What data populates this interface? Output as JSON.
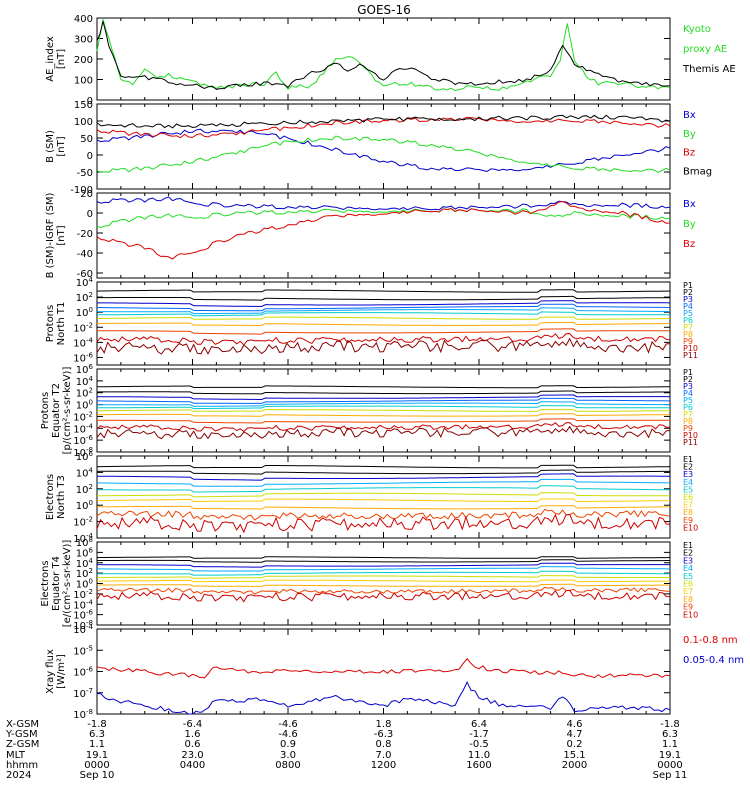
{
  "title": "GOES-16",
  "colors": {
    "black": "#000000",
    "green": "#22dd22",
    "blue": "#0000cc",
    "red": "#dd0000",
    "darkred": "#aa0000"
  },
  "chart_data": [
    {
      "type": "line",
      "panel": "ae",
      "ylabel": [
        "AE_index",
        "[nT]"
      ],
      "ylim": [
        0,
        400
      ],
      "yticks": [
        "0",
        "100",
        "200",
        "300",
        "400"
      ],
      "legend": [
        {
          "text": "Kyoto",
          "color": "#22dd22"
        },
        {
          "text": "proxy AE",
          "color": "#22dd22"
        },
        {
          "text": "Themis AE",
          "color": "#000000"
        }
      ],
      "series": [
        {
          "name": "Kyoto proxy AE",
          "color": "#22dd22",
          "x": [
            0,
            0.25,
            0.5,
            0.75,
            1,
            1.5,
            2,
            2.5,
            3,
            4,
            5,
            6,
            7,
            7.5,
            8,
            9,
            10,
            10.5,
            11,
            12,
            12.5,
            13,
            14,
            15,
            15.5,
            16,
            16.5,
            17,
            18,
            19,
            19.4,
            19.7,
            20,
            20.5,
            21,
            22,
            23,
            24
          ],
          "y": [
            240,
            400,
            300,
            200,
            90,
            80,
            150,
            100,
            120,
            90,
            60,
            70,
            80,
            130,
            60,
            70,
            200,
            220,
            180,
            60,
            80,
            80,
            60,
            50,
            60,
            70,
            50,
            60,
            90,
            120,
            200,
            370,
            200,
            120,
            80,
            80,
            60,
            60
          ]
        },
        {
          "name": "Themis AE",
          "color": "#000000",
          "x": [
            0,
            0.25,
            0.5,
            1,
            1.5,
            2,
            3,
            4,
            5,
            6,
            7,
            8,
            9,
            9.5,
            10,
            10.5,
            11,
            12,
            12.5,
            13,
            14,
            15,
            16,
            17,
            18,
            19,
            19.5,
            20,
            21,
            22,
            23,
            24
          ],
          "y": [
            280,
            380,
            260,
            120,
            110,
            110,
            90,
            70,
            60,
            70,
            80,
            70,
            130,
            140,
            180,
            150,
            170,
            100,
            150,
            160,
            110,
            80,
            80,
            90,
            100,
            140,
            270,
            170,
            130,
            90,
            80,
            70
          ]
        }
      ]
    },
    {
      "type": "line",
      "panel": "b",
      "ylabel": [
        "B (SM)",
        "[nT]"
      ],
      "ylim": [
        -100,
        150
      ],
      "yticks": [
        "-100",
        "-50",
        "0",
        "50",
        "100",
        "150"
      ],
      "legend": [
        {
          "text": "Bx",
          "color": "#0000cc"
        },
        {
          "text": "By",
          "color": "#22dd22"
        },
        {
          "text": "Bz",
          "color": "#dd0000"
        },
        {
          "text": "Bmag",
          "color": "#000000"
        }
      ],
      "series": [
        {
          "name": "Bx",
          "color": "#0000cc",
          "x": [
            0,
            2,
            4,
            6,
            8,
            10,
            12,
            14,
            16,
            18,
            20,
            22,
            24
          ],
          "y": [
            40,
            55,
            70,
            70,
            50,
            15,
            -20,
            -40,
            -45,
            -40,
            -25,
            0,
            20
          ]
        },
        {
          "name": "By",
          "color": "#22dd22",
          "x": [
            0,
            2,
            4,
            6,
            8,
            10,
            12,
            14,
            16,
            18,
            20,
            22,
            24
          ],
          "y": [
            -50,
            -40,
            -20,
            10,
            40,
            50,
            45,
            30,
            5,
            -20,
            -40,
            -45,
            -45
          ]
        },
        {
          "name": "Bz",
          "color": "#dd0000",
          "x": [
            0,
            2,
            4,
            6,
            8,
            10,
            12,
            14,
            16,
            18,
            20,
            22,
            24
          ],
          "y": [
            70,
            60,
            55,
            65,
            80,
            95,
            100,
            105,
            105,
            100,
            100,
            95,
            85
          ]
        },
        {
          "name": "Bmag",
          "color": "#000000",
          "x": [
            0,
            2,
            4,
            6,
            8,
            10,
            12,
            14,
            16,
            18,
            20,
            22,
            24
          ],
          "y": [
            90,
            85,
            85,
            90,
            95,
            100,
            105,
            105,
            108,
            108,
            112,
            110,
            100
          ]
        }
      ]
    },
    {
      "type": "line",
      "panel": "db",
      "ylabel": [
        "B (SM)-IGRF (SM)",
        "[nT]"
      ],
      "ylim": [
        -65,
        20
      ],
      "yticks": [
        "-60",
        "-40",
        "-20",
        "0",
        "20"
      ],
      "legend": [
        {
          "text": "Bx",
          "color": "#0000cc"
        },
        {
          "text": "By",
          "color": "#22dd22"
        },
        {
          "text": "Bz",
          "color": "#dd0000"
        }
      ],
      "series": [
        {
          "name": "Bx",
          "color": "#0000cc",
          "x": [
            0,
            1,
            2,
            3,
            4,
            5,
            6,
            8,
            10,
            12,
            14,
            16,
            18,
            19.5,
            20,
            22,
            24
          ],
          "y": [
            10,
            13,
            12,
            15,
            10,
            8,
            7,
            6,
            5,
            5,
            4,
            6,
            7,
            10,
            8,
            8,
            6
          ]
        },
        {
          "name": "By",
          "color": "#22dd22",
          "x": [
            0,
            1,
            2,
            3,
            4,
            5,
            6,
            8,
            10,
            12,
            14,
            16,
            18,
            19.5,
            20,
            22,
            24
          ],
          "y": [
            -15,
            -8,
            -5,
            -2,
            -5,
            -2,
            0,
            1,
            2,
            2,
            2,
            3,
            2,
            -5,
            0,
            -3,
            -5
          ]
        },
        {
          "name": "Bz",
          "color": "#dd0000",
          "x": [
            0,
            1,
            2,
            3,
            4,
            5,
            6,
            8,
            10,
            12,
            14,
            16,
            18,
            19.5,
            20,
            22,
            24
          ],
          "y": [
            -25,
            -30,
            -35,
            -45,
            -40,
            -30,
            -22,
            -12,
            -3,
            0,
            2,
            3,
            0,
            10,
            5,
            0,
            -10
          ]
        }
      ]
    },
    {
      "type": "line",
      "panel": "protons-t1",
      "log": true,
      "ylabel": [
        "Protons",
        "North T1"
      ],
      "ylim": [
        -7,
        4
      ],
      "yticks": [
        "10^4",
        "10^2",
        "10^0",
        "10^-2",
        "10^-4",
        "10^-6"
      ],
      "legend": [
        {
          "text": "P1",
          "color": "#000000"
        },
        {
          "text": "P2",
          "color": "#000000"
        },
        {
          "text": "P3",
          "color": "#0000cc"
        },
        {
          "text": "P4",
          "color": "#0066ff"
        },
        {
          "text": "P5",
          "color": "#00aaff"
        },
        {
          "text": "P6",
          "color": "#00cccc"
        },
        {
          "text": "P7",
          "color": "#ccdd00"
        },
        {
          "text": "P8",
          "color": "#ffaa00"
        },
        {
          "text": "P9",
          "color": "#ee4400"
        },
        {
          "text": "P10",
          "color": "#cc0000"
        },
        {
          "text": "P11",
          "color": "#880000"
        }
      ],
      "levels": [
        2.8,
        1.8,
        1.1,
        0.6,
        0.2,
        -0.2,
        -0.8,
        -1.6,
        -2.6,
        -3.6,
        -4.6
      ]
    },
    {
      "type": "line",
      "panel": "protons-t2",
      "log": true,
      "ylabel": [
        "Protons",
        "Equator T2",
        "[p/(cm²-s-sr-keV)]"
      ],
      "ylim": [
        -8,
        6
      ],
      "yticks": [
        "10^6",
        "10^4",
        "10^2",
        "10^0",
        "10^-2",
        "10^-4",
        "10^-6",
        "10^-8"
      ],
      "legend": [
        {
          "text": "P1",
          "color": "#000000"
        },
        {
          "text": "P2",
          "color": "#000000"
        },
        {
          "text": "P3",
          "color": "#0000cc"
        },
        {
          "text": "P4",
          "color": "#0066ff"
        },
        {
          "text": "P5",
          "color": "#00aaff"
        },
        {
          "text": "P6",
          "color": "#00cccc"
        },
        {
          "text": "P7",
          "color": "#ccdd00"
        },
        {
          "text": "P8",
          "color": "#ffaa00"
        },
        {
          "text": "P9",
          "color": "#ee4400"
        },
        {
          "text": "P10",
          "color": "#cc0000"
        },
        {
          "text": "P11",
          "color": "#880000"
        }
      ],
      "levels": [
        3.0,
        2.0,
        1.2,
        0.6,
        0.1,
        -0.4,
        -1.0,
        -1.8,
        -2.8,
        -3.8,
        -4.8
      ]
    },
    {
      "type": "line",
      "panel": "electrons-t3",
      "log": true,
      "ylabel": [
        "Electrons",
        "North T3"
      ],
      "ylim": [
        -4,
        6
      ],
      "yticks": [
        "10^6",
        "10^4",
        "10^2",
        "10^0",
        "10^-2",
        "10^-4"
      ],
      "legend": [
        {
          "text": "E1",
          "color": "#000000"
        },
        {
          "text": "E2",
          "color": "#000000"
        },
        {
          "text": "E3",
          "color": "#0000cc"
        },
        {
          "text": "E4",
          "color": "#00aaff"
        },
        {
          "text": "E5",
          "color": "#00cccc"
        },
        {
          "text": "E6",
          "color": "#ccdd00"
        },
        {
          "text": "E7",
          "color": "#ffcc00"
        },
        {
          "text": "E8",
          "color": "#ffaa00"
        },
        {
          "text": "E9",
          "color": "#ee4400"
        },
        {
          "text": "E10",
          "color": "#cc0000"
        }
      ],
      "levels": [
        4.7,
        4.0,
        3.4,
        2.7,
        2.0,
        1.3,
        0.6,
        -0.3,
        -1.2,
        -2.2
      ]
    },
    {
      "type": "line",
      "panel": "electrons-t4",
      "log": true,
      "ylabel": [
        "Electrons",
        "Equator T4",
        "[e/(cm²-s-sr-keV)]"
      ],
      "ylim": [
        -8,
        8
      ],
      "yticks": [
        "10^8",
        "10^6",
        "10^4",
        "10^2",
        "10^0",
        "10^-2",
        "10^-4",
        "10^-6",
        "10^-8"
      ],
      "legend": [
        {
          "text": "E1",
          "color": "#000000"
        },
        {
          "text": "E2",
          "color": "#000000"
        },
        {
          "text": "E3",
          "color": "#0000cc"
        },
        {
          "text": "E4",
          "color": "#00aaff"
        },
        {
          "text": "E5",
          "color": "#00cccc"
        },
        {
          "text": "E6",
          "color": "#ccdd00"
        },
        {
          "text": "E7",
          "color": "#ffcc00"
        },
        {
          "text": "E8",
          "color": "#ffaa00"
        },
        {
          "text": "E9",
          "color": "#ee4400"
        },
        {
          "text": "E10",
          "color": "#cc0000"
        }
      ],
      "levels": [
        5.0,
        4.3,
        3.5,
        2.8,
        2.0,
        1.3,
        0.5,
        -0.4,
        -1.4,
        -2.4
      ]
    },
    {
      "type": "line",
      "panel": "xray",
      "log": true,
      "ylabel": [
        "Xray flux",
        "[W/m²]"
      ],
      "ylim": [
        -8,
        -4
      ],
      "yticks": [
        "10^-4",
        "10^-5",
        "10^-6",
        "10^-7",
        "10^-8"
      ],
      "legend": [
        {
          "text": "0.1-0.8 nm",
          "color": "#dd0000"
        },
        {
          "text": "0.05-0.4 nm",
          "color": "#0000cc"
        }
      ],
      "series": [
        {
          "name": "0.1-0.8 nm",
          "color": "#dd0000",
          "x": [
            0,
            1,
            2,
            3,
            4,
            4.3,
            4.5,
            5,
            6,
            8,
            10,
            12,
            13,
            14,
            15,
            15.5,
            16,
            17,
            18,
            19,
            19.5,
            20,
            22,
            24
          ],
          "y": [
            -5.8,
            -5.9,
            -6.0,
            -6.1,
            -6.2,
            -6.3,
            -6.2,
            -5.8,
            -6.0,
            -6.0,
            -6.0,
            -6.0,
            -6.0,
            -5.9,
            -6.0,
            -5.5,
            -5.8,
            -6.0,
            -6.0,
            -6.1,
            -6.0,
            -6.2,
            -6.2,
            -6.2
          ]
        },
        {
          "name": "0.05-0.4 nm",
          "color": "#0000cc",
          "x": [
            0,
            1,
            2,
            3,
            4,
            4.3,
            4.5,
            5,
            6,
            7,
            8,
            10,
            11,
            12,
            13,
            14,
            15,
            15.5,
            16,
            17,
            18,
            19,
            19.5,
            20,
            22,
            24
          ],
          "y": [
            -7.1,
            -7.4,
            -7.6,
            -7.8,
            -8.0,
            -7.9,
            -7.8,
            -7.3,
            -7.4,
            -7.3,
            -7.6,
            -7.2,
            -7.4,
            -7.6,
            -7.3,
            -7.4,
            -7.6,
            -6.6,
            -7.2,
            -7.6,
            -7.7,
            -7.7,
            -7.2,
            -7.8,
            -7.7,
            -7.8
          ]
        }
      ]
    }
  ],
  "x_axis": {
    "row_labels": [
      "X-GSM",
      "Y-GSM",
      "Z-GSM",
      "MLT",
      "hhmm",
      "2024"
    ],
    "columns": [
      [
        "-1.8",
        "6.3",
        "1.1",
        "19.1",
        "0000",
        "Sep 10"
      ],
      [
        "-6.4",
        "1.6",
        "0.6",
        "23.0",
        "0400",
        ""
      ],
      [
        "-4.6",
        "-4.6",
        "0.9",
        "3.0",
        "0800",
        ""
      ],
      [
        "1.8",
        "-6.3",
        "0.8",
        "7.0",
        "1200",
        ""
      ],
      [
        "6.4",
        "-1.7",
        "-0.5",
        "11.0",
        "1600",
        ""
      ],
      [
        "4.6",
        "4.7",
        "0.2",
        "15.1",
        "2000",
        ""
      ],
      [
        "-1.8",
        "6.3",
        "1.1",
        "19.1",
        "0000",
        "Sep 11"
      ]
    ]
  }
}
